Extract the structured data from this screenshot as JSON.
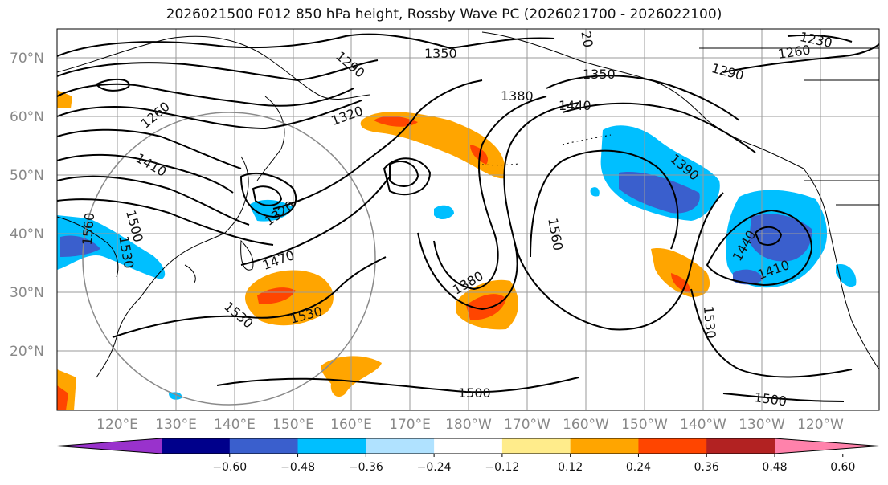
{
  "title": "2026021500 F012 850 hPa height, Rossby Wave PC (2026021700 - 2026022100)",
  "map": {
    "lat_labels": [
      "70°N",
      "60°N",
      "50°N",
      "40°N",
      "30°N",
      "20°N"
    ],
    "lon_labels": [
      "120°E",
      "130°E",
      "140°E",
      "150°E",
      "160°E",
      "170°E",
      "180°W",
      "170°W",
      "160°W",
      "150°W",
      "140°W",
      "130°W",
      "120°W"
    ],
    "contour_labels": [
      "1350",
      "1290",
      "1260",
      "1320",
      "1350",
      "1380",
      "1440",
      "1290",
      "1230",
      "1260",
      "1410",
      "1500",
      "1560",
      "1530",
      "1320",
      "1470",
      "1560",
      "1380",
      "1390",
      "1440",
      "1410",
      "1530",
      "1530",
      "1530",
      "1500",
      "1500",
      "20"
    ]
  },
  "colorbar": {
    "ticks": [
      "−0.60",
      "−0.48",
      "−0.36",
      "−0.24",
      "−0.12",
      "0.12",
      "0.24",
      "0.36",
      "0.48",
      "0.60"
    ],
    "colors": [
      "#9932cc",
      "#00008b",
      "#3a5fcd",
      "#00bfff",
      "#b0e2ff",
      "#ffffff",
      "#ffec8b",
      "#ffa500",
      "#ff4500",
      "#b22222",
      "#ff82ab"
    ]
  }
}
